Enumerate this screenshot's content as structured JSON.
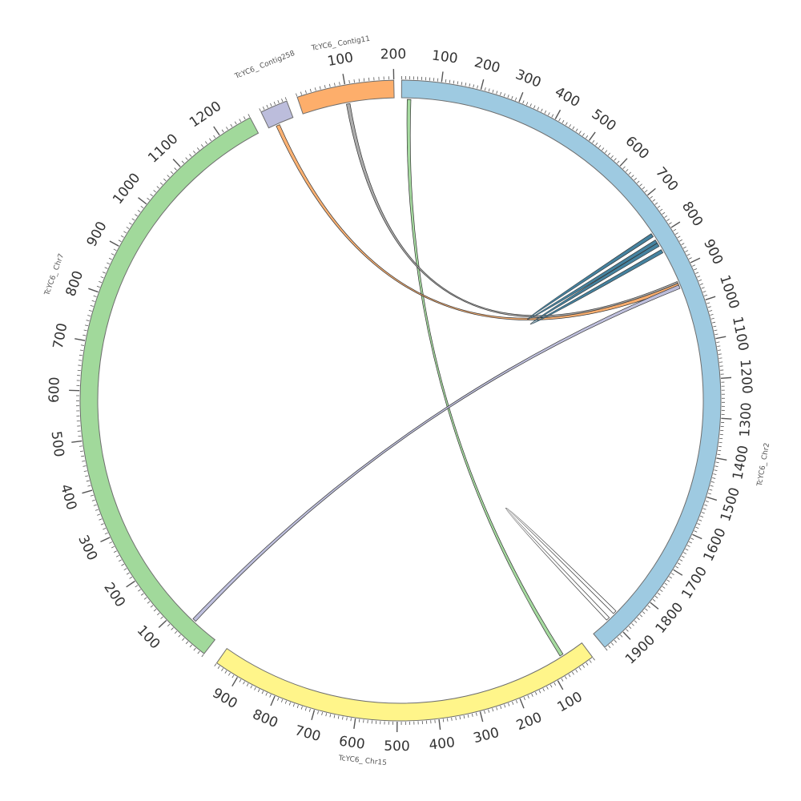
{
  "segments": [
    {
      "id": "chr2",
      "name": "TcYC6_ Chr2",
      "color": "#9ecae1",
      "length": 1960,
      "tick_major": 100,
      "tick_minor": 10
    },
    {
      "id": "chr15",
      "name": "TcYC6_ Chr15",
      "color": "#fff58a",
      "length": 960,
      "tick_major": 100,
      "tick_minor": 10
    },
    {
      "id": "chr7",
      "name": "TcYC6_ Chr7",
      "color": "#a1d99b",
      "length": 1270,
      "tick_major": 100,
      "tick_minor": 10
    },
    {
      "id": "contig258",
      "name": "TcYC6_ Contig258",
      "color": "#bcbddc",
      "length": 70,
      "tick_major": 100,
      "tick_minor": 10
    },
    {
      "id": "contig11",
      "name": "TcYC6_ Contig11",
      "color": "#fdae6b",
      "length": 200,
      "tick_major": 100,
      "tick_minor": 10
    }
  ],
  "links": [
    {
      "from": "chr2",
      "from_pos": 20,
      "to": "chr15",
      "to_pos": 60,
      "color": "#a1d99b"
    },
    {
      "from": "contig11",
      "from_pos": 100,
      "to": "chr2",
      "to_pos": 935,
      "color": "#a8a8a8"
    },
    {
      "from": "contig258",
      "from_pos": 25,
      "to": "chr2",
      "to_pos": 940,
      "color": "#fdae6b"
    },
    {
      "from": "chr2",
      "from_pos": 945,
      "to": "chr7",
      "to_pos": 60,
      "color": "#bcbddc"
    },
    {
      "from": "chr2",
      "from_pos": 790,
      "to": "chr2",
      "to_pos": 810,
      "color": "#3b7b9a"
    },
    {
      "from": "chr2",
      "from_pos": 840,
      "to": "chr2",
      "to_pos": 820,
      "color": "#3b7b9a"
    },
    {
      "from": "chr2",
      "from_pos": 1905,
      "to": "chr2",
      "to_pos": 1880,
      "color": "#ffffff"
    }
  ]
}
